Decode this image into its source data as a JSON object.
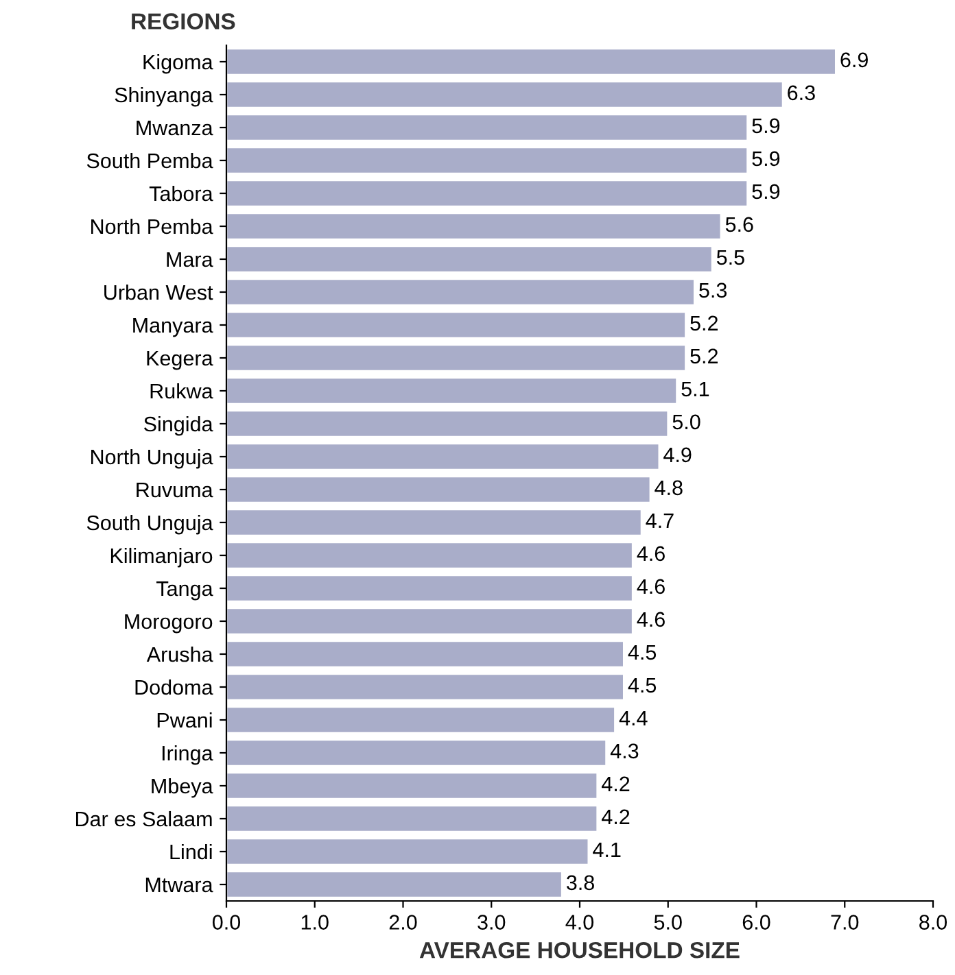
{
  "chart_data": {
    "type": "bar",
    "orientation": "horizontal",
    "ylabel": "REGIONS",
    "xlabel": "AVERAGE HOUSEHOLD SIZE",
    "categories": [
      "Kigoma",
      "Shinyanga",
      "Mwanza",
      "South Pemba",
      "Tabora",
      "North Pemba",
      "Mara",
      "Urban West",
      "Manyara",
      "Kegera",
      "Rukwa",
      "Singida",
      "North Unguja",
      "Ruvuma",
      "South Unguja",
      "Kilimanjaro",
      "Tanga",
      "Morogoro",
      "Arusha",
      "Dodoma",
      "Pwani",
      "Iringa",
      "Mbeya",
      "Dar es Salaam",
      "Lindi",
      "Mtwara"
    ],
    "values": [
      6.9,
      6.3,
      5.9,
      5.9,
      5.9,
      5.6,
      5.5,
      5.3,
      5.2,
      5.2,
      5.1,
      5.0,
      4.9,
      4.8,
      4.7,
      4.6,
      4.6,
      4.6,
      4.5,
      4.5,
      4.4,
      4.3,
      4.2,
      4.2,
      4.1,
      3.8
    ],
    "value_labels": [
      "6.9",
      "6.3",
      "5.9",
      "5.9",
      "5.9",
      "5.6",
      "5.5",
      "5.3",
      "5.2",
      "5.2",
      "5.1",
      "5.0",
      "4.9",
      "4.8",
      "4.7",
      "4.6",
      "4.6",
      "4.6",
      "4.5",
      "4.5",
      "4.4",
      "4.3",
      "4.2",
      "4.2",
      "4.1",
      "3.8"
    ],
    "color": "#a9adc9",
    "xlim": [
      0,
      8
    ],
    "xticks": [
      {
        "value": 0,
        "label": "0.0"
      },
      {
        "value": 1,
        "label": "1.0"
      },
      {
        "value": 2,
        "label": "2.0"
      },
      {
        "value": 3,
        "label": "3.0"
      },
      {
        "value": 4,
        "label": "4.0"
      },
      {
        "value": 5,
        "label": "5.0"
      },
      {
        "value": 6,
        "label": "6.0"
      },
      {
        "value": 7,
        "label": "7.0"
      },
      {
        "value": 8,
        "label": "8.0"
      }
    ],
    "grid": false,
    "legend": false
  }
}
